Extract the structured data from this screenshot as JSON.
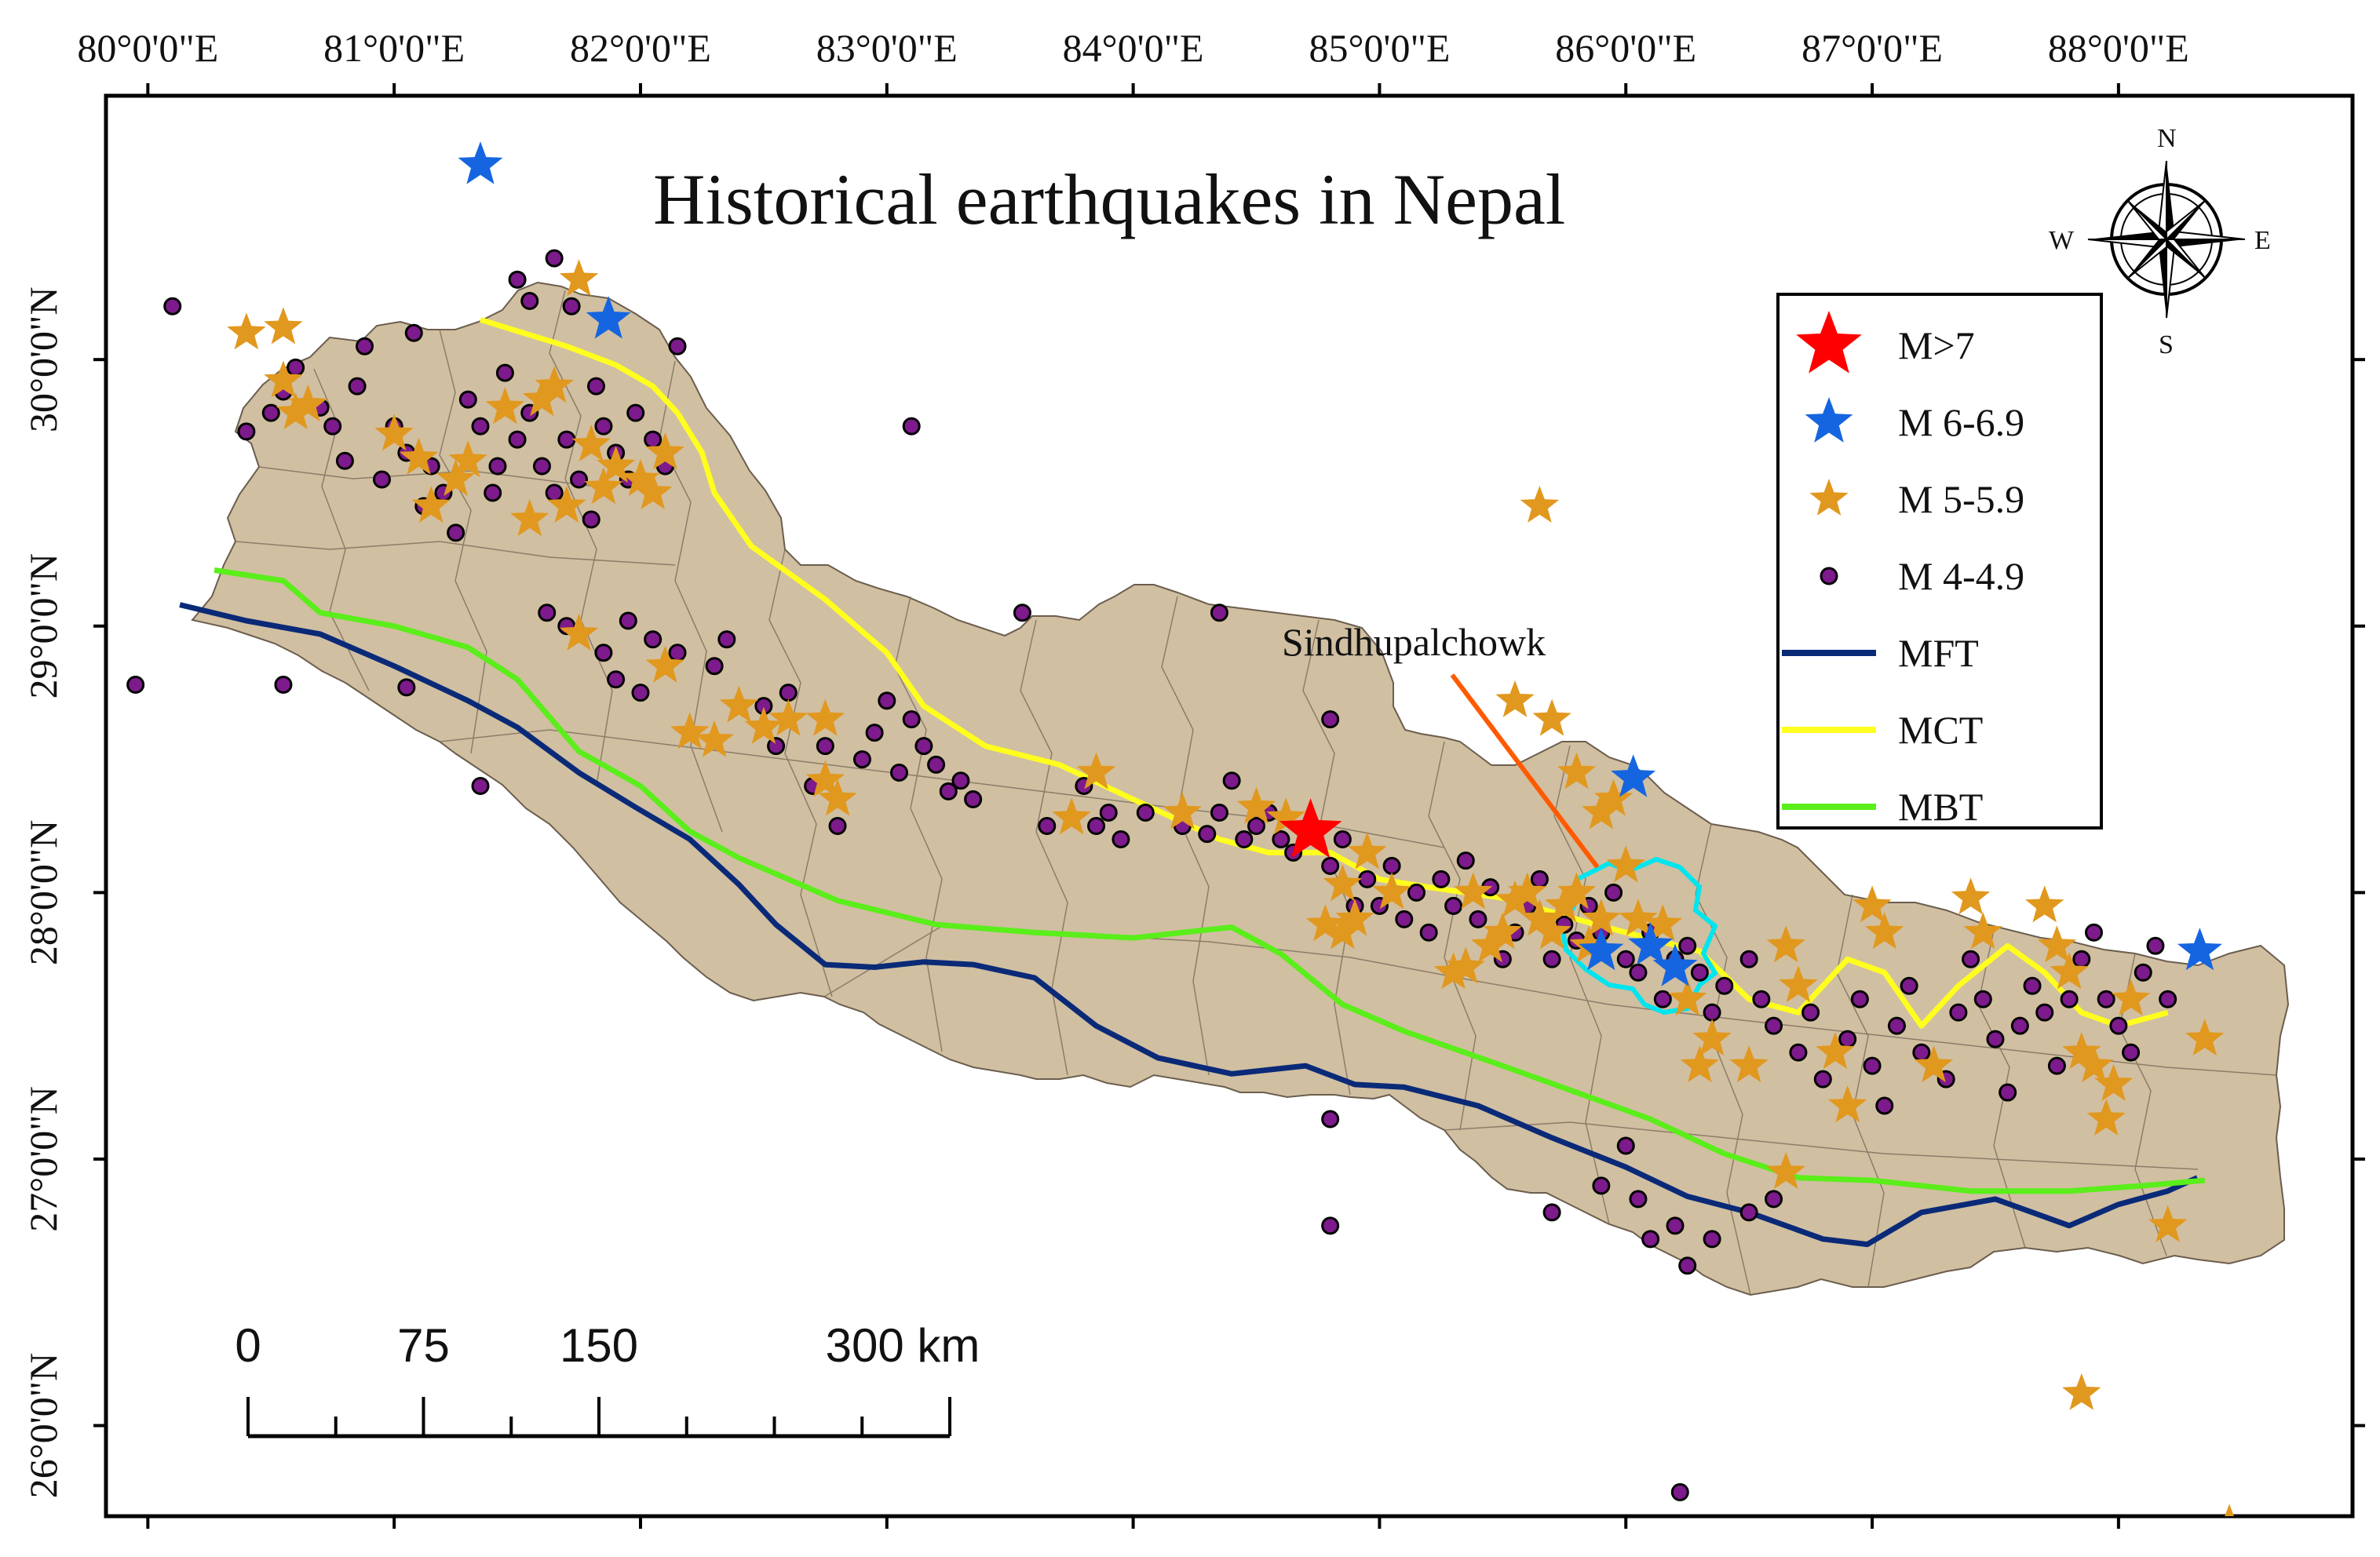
{
  "title": "Historical earthquakes in Nepal",
  "colors": {
    "land": "#d1bfa1",
    "frame": "#000000",
    "mft": "#0a2a78",
    "mct": "#ffff1e",
    "mbt": "#5aee1a",
    "m7": "#ff0000",
    "m6": "#1565e0",
    "m5": "#e1981e",
    "m4_fill": "#7d1a8c",
    "m4_stroke": "#000000",
    "district_outline": "#00e5ee",
    "callout_line": "#ff5a00"
  },
  "axes": {
    "lon_labels": [
      "80°0'0\"E",
      "81°0'0\"E",
      "82°0'0\"E",
      "83°0'0\"E",
      "84°0'0\"E",
      "85°0'0\"E",
      "86°0'0\"E",
      "87°0'0\"E",
      "88°0'0\"E"
    ],
    "lon_values": [
      80,
      81,
      82,
      83,
      84,
      85,
      86,
      87,
      88
    ],
    "lat_labels": [
      "30°0'0\"N",
      "29°0'0\"N",
      "28°0'0\"N",
      "27°0'0\"N",
      "26°0'0\"N"
    ],
    "lat_values": [
      30,
      29,
      28,
      27,
      26
    ],
    "lon_range": [
      79.83,
      88.95
    ],
    "lat_range": [
      25.66,
      30.99
    ]
  },
  "legend": {
    "items": [
      {
        "label": "M>7",
        "symbol": "star",
        "color_key": "m7"
      },
      {
        "label": "M 6-6.9",
        "symbol": "star",
        "color_key": "m6"
      },
      {
        "label": "M 5-5.9",
        "symbol": "star",
        "color_key": "m5"
      },
      {
        "label": "M 4-4.9",
        "symbol": "dot",
        "color_key": "m4_fill"
      },
      {
        "label": "MFT",
        "symbol": "line",
        "color_key": "mft"
      },
      {
        "label": "MCT",
        "symbol": "line",
        "color_key": "mct"
      },
      {
        "label": "MBT",
        "symbol": "line",
        "color_key": "mbt"
      }
    ]
  },
  "compass": {
    "n": "N",
    "s": "S",
    "e": "E",
    "w": "W"
  },
  "scale_bar": {
    "labels": [
      "0",
      "75",
      "150",
      "300 km"
    ],
    "km_values": [
      0,
      75,
      150,
      300
    ]
  },
  "callout": {
    "label": "Sindhupalchowk"
  },
  "faults": {
    "mft": [
      [
        80.13,
        29.08
      ],
      [
        80.4,
        29.02
      ],
      [
        80.7,
        28.97
      ],
      [
        81.0,
        28.85
      ],
      [
        81.3,
        28.72
      ],
      [
        81.5,
        28.62
      ],
      [
        81.75,
        28.45
      ],
      [
        81.98,
        28.32
      ],
      [
        82.2,
        28.2
      ],
      [
        82.4,
        28.03
      ],
      [
        82.55,
        27.88
      ],
      [
        82.75,
        27.73
      ],
      [
        82.95,
        27.72
      ],
      [
        83.15,
        27.74
      ],
      [
        83.35,
        27.73
      ],
      [
        83.6,
        27.68
      ],
      [
        83.85,
        27.5
      ],
      [
        84.1,
        27.38
      ],
      [
        84.4,
        27.32
      ],
      [
        84.7,
        27.35
      ],
      [
        84.9,
        27.28
      ],
      [
        85.1,
        27.27
      ],
      [
        85.4,
        27.2
      ],
      [
        85.7,
        27.08
      ],
      [
        86.0,
        26.97
      ],
      [
        86.25,
        26.86
      ],
      [
        86.5,
        26.8
      ],
      [
        86.8,
        26.7
      ],
      [
        86.98,
        26.68
      ],
      [
        87.2,
        26.8
      ],
      [
        87.5,
        26.85
      ],
      [
        87.8,
        26.75
      ],
      [
        88.0,
        26.83
      ],
      [
        88.2,
        26.88
      ],
      [
        88.32,
        26.93
      ]
    ],
    "mbt": [
      [
        80.27,
        29.21
      ],
      [
        80.55,
        29.17
      ],
      [
        80.7,
        29.05
      ],
      [
        81.0,
        29.0
      ],
      [
        81.3,
        28.92
      ],
      [
        81.5,
        28.8
      ],
      [
        81.75,
        28.53
      ],
      [
        82.0,
        28.4
      ],
      [
        82.2,
        28.23
      ],
      [
        82.4,
        28.13
      ],
      [
        82.8,
        27.97
      ],
      [
        83.2,
        27.88
      ],
      [
        83.6,
        27.85
      ],
      [
        84.0,
        27.83
      ],
      [
        84.4,
        27.87
      ],
      [
        84.6,
        27.77
      ],
      [
        84.85,
        27.58
      ],
      [
        85.1,
        27.48
      ],
      [
        85.5,
        27.35
      ],
      [
        85.8,
        27.25
      ],
      [
        86.1,
        27.15
      ],
      [
        86.4,
        27.02
      ],
      [
        86.7,
        26.93
      ],
      [
        87.0,
        26.92
      ],
      [
        87.4,
        26.88
      ],
      [
        87.8,
        26.88
      ],
      [
        88.1,
        26.9
      ],
      [
        88.35,
        26.92
      ]
    ],
    "mct": [
      [
        81.35,
        30.15
      ],
      [
        81.7,
        30.05
      ],
      [
        81.9,
        29.98
      ],
      [
        82.05,
        29.9
      ],
      [
        82.15,
        29.8
      ],
      [
        82.25,
        29.65
      ],
      [
        82.3,
        29.5
      ],
      [
        82.45,
        29.3
      ],
      [
        82.75,
        29.1
      ],
      [
        83.0,
        28.9
      ],
      [
        83.15,
        28.7
      ],
      [
        83.4,
        28.55
      ],
      [
        83.7,
        28.48
      ],
      [
        84.0,
        28.35
      ],
      [
        84.35,
        28.2
      ],
      [
        84.55,
        28.15
      ],
      [
        84.8,
        28.15
      ],
      [
        85.0,
        28.05
      ],
      [
        85.2,
        28.02
      ],
      [
        85.5,
        27.98
      ],
      [
        85.8,
        27.9
      ],
      [
        86.0,
        27.85
      ],
      [
        86.3,
        27.78
      ],
      [
        86.5,
        27.6
      ],
      [
        86.7,
        27.55
      ],
      [
        86.9,
        27.75
      ],
      [
        87.05,
        27.7
      ],
      [
        87.2,
        27.5
      ],
      [
        87.35,
        27.65
      ],
      [
        87.55,
        27.8
      ],
      [
        87.7,
        27.7
      ],
      [
        87.85,
        27.55
      ],
      [
        88.0,
        27.5
      ],
      [
        88.2,
        27.55
      ]
    ]
  },
  "events": {
    "m7": [
      [
        84.72,
        28.23
      ]
    ],
    "m6": [
      [
        81.35,
        30.73
      ],
      [
        81.87,
        30.15
      ],
      [
        86.03,
        28.43
      ],
      [
        85.9,
        27.78
      ],
      [
        86.1,
        27.8
      ],
      [
        86.2,
        27.72
      ],
      [
        88.33,
        27.78
      ]
    ],
    "m5": [
      [
        80.4,
        30.1
      ],
      [
        80.55,
        30.12
      ],
      [
        80.55,
        29.92
      ],
      [
        80.6,
        29.8
      ],
      [
        80.65,
        29.83
      ],
      [
        81.0,
        29.72
      ],
      [
        81.1,
        29.63
      ],
      [
        81.15,
        29.45
      ],
      [
        81.25,
        29.55
      ],
      [
        81.3,
        29.62
      ],
      [
        81.45,
        29.82
      ],
      [
        81.55,
        29.4
      ],
      [
        81.6,
        29.85
      ],
      [
        81.65,
        29.9
      ],
      [
        81.7,
        29.45
      ],
      [
        81.75,
        30.3
      ],
      [
        81.8,
        29.68
      ],
      [
        81.85,
        29.52
      ],
      [
        81.9,
        29.6
      ],
      [
        82.0,
        29.55
      ],
      [
        82.05,
        29.5
      ],
      [
        82.1,
        29.65
      ],
      [
        81.75,
        28.97
      ],
      [
        82.1,
        28.85
      ],
      [
        82.2,
        28.6
      ],
      [
        82.3,
        28.57
      ],
      [
        82.4,
        28.7
      ],
      [
        82.5,
        28.62
      ],
      [
        82.6,
        28.65
      ],
      [
        82.75,
        28.65
      ],
      [
        82.75,
        28.42
      ],
      [
        82.8,
        28.35
      ],
      [
        83.75,
        28.28
      ],
      [
        83.85,
        28.45
      ],
      [
        84.2,
        28.3
      ],
      [
        84.5,
        28.32
      ],
      [
        84.62,
        28.28
      ],
      [
        84.85,
        28.03
      ],
      [
        84.95,
        28.15
      ],
      [
        85.05,
        28.0
      ],
      [
        84.78,
        27.88
      ],
      [
        84.85,
        27.85
      ],
      [
        84.9,
        27.9
      ],
      [
        85.3,
        27.7
      ],
      [
        85.35,
        27.72
      ],
      [
        85.38,
        28.0
      ],
      [
        85.45,
        27.8
      ],
      [
        85.5,
        27.85
      ],
      [
        85.55,
        27.97
      ],
      [
        85.6,
        28.0
      ],
      [
        85.65,
        27.9
      ],
      [
        85.7,
        27.85
      ],
      [
        85.75,
        27.95
      ],
      [
        85.8,
        28.0
      ],
      [
        85.85,
        27.8
      ],
      [
        85.9,
        27.9
      ],
      [
        85.55,
        28.72
      ],
      [
        85.65,
        29.45
      ],
      [
        85.7,
        28.65
      ],
      [
        85.8,
        28.45
      ],
      [
        85.9,
        28.3
      ],
      [
        85.95,
        28.35
      ],
      [
        86.0,
        28.1
      ],
      [
        86.05,
        27.9
      ],
      [
        86.15,
        27.88
      ],
      [
        86.25,
        27.6
      ],
      [
        86.3,
        27.35
      ],
      [
        86.35,
        27.45
      ],
      [
        86.5,
        27.35
      ],
      [
        86.65,
        27.8
      ],
      [
        86.7,
        27.65
      ],
      [
        86.65,
        26.95
      ],
      [
        86.85,
        27.4
      ],
      [
        86.9,
        27.2
      ],
      [
        87.0,
        27.95
      ],
      [
        87.05,
        27.85
      ],
      [
        87.25,
        27.35
      ],
      [
        87.4,
        27.98
      ],
      [
        87.45,
        27.85
      ],
      [
        87.7,
        27.95
      ],
      [
        87.75,
        27.8
      ],
      [
        87.8,
        27.7
      ],
      [
        87.85,
        27.4
      ],
      [
        87.9,
        27.35
      ],
      [
        87.95,
        27.15
      ],
      [
        87.98,
        27.28
      ],
      [
        88.05,
        27.6
      ],
      [
        88.2,
        26.75
      ],
      [
        88.35,
        27.45
      ],
      [
        87.85,
        26.12
      ],
      [
        88.45,
        25.63
      ]
    ],
    "m4": [
      [
        80.1,
        30.2
      ],
      [
        79.95,
        28.78
      ],
      [
        80.4,
        29.73
      ],
      [
        80.5,
        29.8
      ],
      [
        80.55,
        29.88
      ],
      [
        80.6,
        29.97
      ],
      [
        80.7,
        29.82
      ],
      [
        80.75,
        29.75
      ],
      [
        80.8,
        29.62
      ],
      [
        80.85,
        29.9
      ],
      [
        80.88,
        30.05
      ],
      [
        80.95,
        29.55
      ],
      [
        81.0,
        29.75
      ],
      [
        81.05,
        29.65
      ],
      [
        81.08,
        30.1
      ],
      [
        81.12,
        29.45
      ],
      [
        81.15,
        29.6
      ],
      [
        81.2,
        29.5
      ],
      [
        81.25,
        29.35
      ],
      [
        81.3,
        29.85
      ],
      [
        81.35,
        29.75
      ],
      [
        81.4,
        29.5
      ],
      [
        81.42,
        29.6
      ],
      [
        81.45,
        29.95
      ],
      [
        81.5,
        29.7
      ],
      [
        81.55,
        29.8
      ],
      [
        81.6,
        29.6
      ],
      [
        81.65,
        29.5
      ],
      [
        81.7,
        29.7
      ],
      [
        81.72,
        30.2
      ],
      [
        81.75,
        29.55
      ],
      [
        81.8,
        29.4
      ],
      [
        81.82,
        29.9
      ],
      [
        81.85,
        29.75
      ],
      [
        81.9,
        29.65
      ],
      [
        81.95,
        29.55
      ],
      [
        81.98,
        29.8
      ],
      [
        82.05,
        29.7
      ],
      [
        82.1,
        29.6
      ],
      [
        82.15,
        30.05
      ],
      [
        81.5,
        30.3
      ],
      [
        81.55,
        30.22
      ],
      [
        81.65,
        30.38
      ],
      [
        81.62,
        29.05
      ],
      [
        81.7,
        29.0
      ],
      [
        81.85,
        28.9
      ],
      [
        81.9,
        28.8
      ],
      [
        81.95,
        29.02
      ],
      [
        82.0,
        28.75
      ],
      [
        82.05,
        28.95
      ],
      [
        82.15,
        28.9
      ],
      [
        82.3,
        28.85
      ],
      [
        82.35,
        28.95
      ],
      [
        82.5,
        28.7
      ],
      [
        82.55,
        28.55
      ],
      [
        82.6,
        28.75
      ],
      [
        82.7,
        28.4
      ],
      [
        82.75,
        28.55
      ],
      [
        82.8,
        28.25
      ],
      [
        82.9,
        28.5
      ],
      [
        82.95,
        28.6
      ],
      [
        83.0,
        28.72
      ],
      [
        83.05,
        28.45
      ],
      [
        83.1,
        28.65
      ],
      [
        83.15,
        28.55
      ],
      [
        83.2,
        28.48
      ],
      [
        83.25,
        28.38
      ],
      [
        83.3,
        28.42
      ],
      [
        83.35,
        28.35
      ],
      [
        83.1,
        29.75
      ],
      [
        83.55,
        29.05
      ],
      [
        83.65,
        28.25
      ],
      [
        83.8,
        28.4
      ],
      [
        83.85,
        28.25
      ],
      [
        83.9,
        28.3
      ],
      [
        83.95,
        28.2
      ],
      [
        84.05,
        28.3
      ],
      [
        84.2,
        28.25
      ],
      [
        84.3,
        28.22
      ],
      [
        84.35,
        28.3
      ],
      [
        84.4,
        28.42
      ],
      [
        84.45,
        28.2
      ],
      [
        84.5,
        28.25
      ],
      [
        84.55,
        28.3
      ],
      [
        84.6,
        28.2
      ],
      [
        84.65,
        28.15
      ],
      [
        84.8,
        28.1
      ],
      [
        84.85,
        28.2
      ],
      [
        84.9,
        27.95
      ],
      [
        84.95,
        28.05
      ],
      [
        85.0,
        27.95
      ],
      [
        85.05,
        28.1
      ],
      [
        85.1,
        27.9
      ],
      [
        85.15,
        28.0
      ],
      [
        85.2,
        27.85
      ],
      [
        85.25,
        28.05
      ],
      [
        85.3,
        27.95
      ],
      [
        85.35,
        28.12
      ],
      [
        85.4,
        27.9
      ],
      [
        85.45,
        28.02
      ],
      [
        85.5,
        27.75
      ],
      [
        85.55,
        27.85
      ],
      [
        85.6,
        27.95
      ],
      [
        85.65,
        28.05
      ],
      [
        85.7,
        27.75
      ],
      [
        85.75,
        27.88
      ],
      [
        85.8,
        27.82
      ],
      [
        85.85,
        27.95
      ],
      [
        85.9,
        27.85
      ],
      [
        85.95,
        28.0
      ],
      [
        86.0,
        27.75
      ],
      [
        86.05,
        27.7
      ],
      [
        86.1,
        27.85
      ],
      [
        86.15,
        27.6
      ],
      [
        86.2,
        27.75
      ],
      [
        86.25,
        27.8
      ],
      [
        86.3,
        27.7
      ],
      [
        86.35,
        27.55
      ],
      [
        86.4,
        27.65
      ],
      [
        86.5,
        27.75
      ],
      [
        86.55,
        27.6
      ],
      [
        86.6,
        27.5
      ],
      [
        86.7,
        27.4
      ],
      [
        86.75,
        27.55
      ],
      [
        86.8,
        27.3
      ],
      [
        86.9,
        27.45
      ],
      [
        86.95,
        27.6
      ],
      [
        87.0,
        27.35
      ],
      [
        87.05,
        27.2
      ],
      [
        87.1,
        27.5
      ],
      [
        87.15,
        27.65
      ],
      [
        87.2,
        27.4
      ],
      [
        87.3,
        27.3
      ],
      [
        87.35,
        27.55
      ],
      [
        87.4,
        27.75
      ],
      [
        87.45,
        27.6
      ],
      [
        87.5,
        27.45
      ],
      [
        87.55,
        27.25
      ],
      [
        87.6,
        27.5
      ],
      [
        87.65,
        27.65
      ],
      [
        87.7,
        27.55
      ],
      [
        87.75,
        27.35
      ],
      [
        87.8,
        27.6
      ],
      [
        87.85,
        27.75
      ],
      [
        87.9,
        27.85
      ],
      [
        87.95,
        27.6
      ],
      [
        88.0,
        27.5
      ],
      [
        88.05,
        27.4
      ],
      [
        88.1,
        27.7
      ],
      [
        88.15,
        27.8
      ],
      [
        88.2,
        27.6
      ],
      [
        86.25,
        26.6
      ],
      [
        86.1,
        26.7
      ],
      [
        86.05,
        26.85
      ],
      [
        86.2,
        26.75
      ],
      [
        86.35,
        26.7
      ],
      [
        86.5,
        26.8
      ],
      [
        86.6,
        26.85
      ],
      [
        84.8,
        27.15
      ],
      [
        84.8,
        26.75
      ],
      [
        84.8,
        28.65
      ],
      [
        84.35,
        29.05
      ],
      [
        80.55,
        28.78
      ],
      [
        81.05,
        28.77
      ],
      [
        81.35,
        28.4
      ],
      [
        87.35,
        28.33
      ],
      [
        86.22,
        25.75
      ],
      [
        85.7,
        26.8
      ],
      [
        85.9,
        26.9
      ],
      [
        86.0,
        27.05
      ]
    ]
  }
}
